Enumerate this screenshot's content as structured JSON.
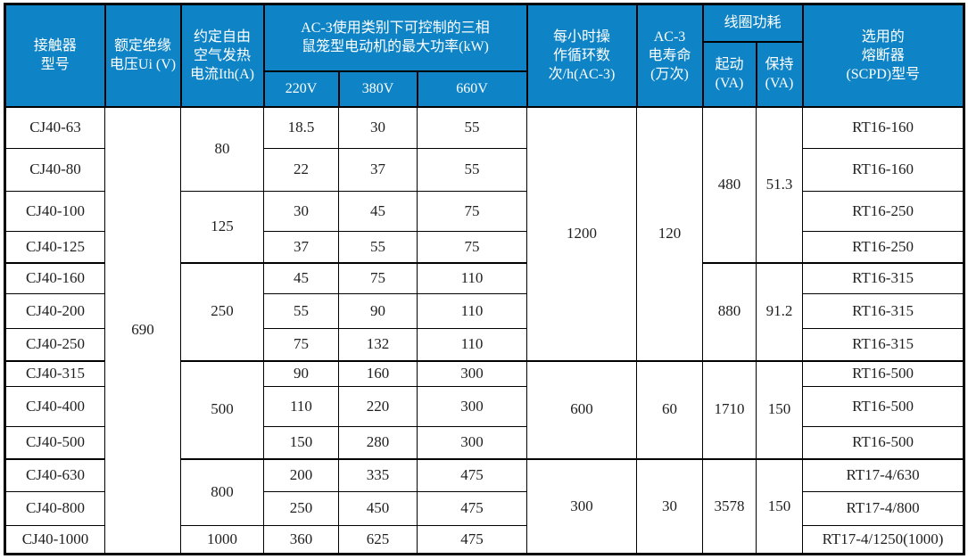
{
  "chart_data": {
    "type": "table",
    "header": {
      "model": "接触器\n型号",
      "ui": "额定绝缘\n电压Ui (V)",
      "ith": "约定自由\n空气发热\n电流Ith(A)",
      "power_group": "AC-3使用类别下可控制的三相\n鼠笼型电动机的最大功率(kW)",
      "v220": "220V",
      "v380": "380V",
      "v660": "660V",
      "cycles": "每小时操\n作循环数\n次/h(AC-3)",
      "life": "AC-3\n电寿命\n(万次)",
      "coil_group": "线圈功耗",
      "coil_start": "起动\n(VA)",
      "coil_hold": "保持\n(VA)",
      "fuse": "选用的\n熔断器\n(SCPD)型号"
    },
    "rows": [
      [
        {
          "c": "model",
          "v": "CJ40-63"
        },
        {
          "c": "ui",
          "v": "690",
          "rs": 13
        },
        {
          "c": "ith",
          "v": "80",
          "rs": 2
        },
        {
          "c": "p220",
          "v": "18.5"
        },
        {
          "c": "p380",
          "v": "30"
        },
        {
          "c": "p660",
          "v": "55"
        },
        {
          "c": "cycles",
          "v": "1200",
          "rs": 7
        },
        {
          "c": "life",
          "v": "120",
          "rs": 7
        },
        {
          "c": "coil-start",
          "v": "480",
          "rs": 4
        },
        {
          "c": "coil-hold",
          "v": "51.3",
          "rs": 4
        },
        {
          "c": "fuse",
          "v": "RT16-160"
        }
      ],
      [
        {
          "c": "model",
          "v": "CJ40-80"
        },
        {
          "c": "p220",
          "v": "22"
        },
        {
          "c": "p380",
          "v": "37"
        },
        {
          "c": "p660",
          "v": "55"
        },
        {
          "c": "fuse",
          "v": "RT16-160"
        }
      ],
      [
        {
          "c": "model",
          "v": "CJ40-100"
        },
        {
          "c": "ith",
          "v": "125",
          "rs": 2
        },
        {
          "c": "p220",
          "v": "30"
        },
        {
          "c": "p380",
          "v": "45"
        },
        {
          "c": "p660",
          "v": "75"
        },
        {
          "c": "fuse",
          "v": "RT16-250"
        }
      ],
      [
        {
          "c": "model",
          "v": "CJ40-125"
        },
        {
          "c": "p220",
          "v": "37"
        },
        {
          "c": "p380",
          "v": "55"
        },
        {
          "c": "p660",
          "v": "75"
        },
        {
          "c": "fuse",
          "v": "RT16-250"
        }
      ],
      [
        {
          "c": "model",
          "v": "CJ40-160"
        },
        {
          "c": "ith",
          "v": "250",
          "rs": 3
        },
        {
          "c": "p220",
          "v": "45"
        },
        {
          "c": "p380",
          "v": "75"
        },
        {
          "c": "p660",
          "v": "110"
        },
        {
          "c": "coil-start",
          "v": "880",
          "rs": 3
        },
        {
          "c": "coil-hold",
          "v": "91.2",
          "rs": 3
        },
        {
          "c": "fuse",
          "v": "RT16-315"
        }
      ],
      [
        {
          "c": "model",
          "v": "CJ40-200"
        },
        {
          "c": "p220",
          "v": "55"
        },
        {
          "c": "p380",
          "v": "90"
        },
        {
          "c": "p660",
          "v": "110"
        },
        {
          "c": "fuse",
          "v": "RT16-315"
        }
      ],
      [
        {
          "c": "model",
          "v": "CJ40-250"
        },
        {
          "c": "p220",
          "v": "75"
        },
        {
          "c": "p380",
          "v": "132"
        },
        {
          "c": "p660",
          "v": "110"
        },
        {
          "c": "fuse",
          "v": "RT16-315"
        }
      ],
      [
        {
          "c": "model",
          "v": "CJ40-315"
        },
        {
          "c": "ith",
          "v": "500",
          "rs": 3
        },
        {
          "c": "p220",
          "v": "90"
        },
        {
          "c": "p380",
          "v": "160"
        },
        {
          "c": "p660",
          "v": "300"
        },
        {
          "c": "cycles",
          "v": "600",
          "rs": 3
        },
        {
          "c": "life",
          "v": "60",
          "rs": 3
        },
        {
          "c": "coil-start",
          "v": "1710",
          "rs": 3
        },
        {
          "c": "coil-hold",
          "v": "150",
          "rs": 3
        },
        {
          "c": "fuse",
          "v": "RT16-500"
        }
      ],
      [
        {
          "c": "model",
          "v": "CJ40-400"
        },
        {
          "c": "p220",
          "v": "110"
        },
        {
          "c": "p380",
          "v": "220"
        },
        {
          "c": "p660",
          "v": "300"
        },
        {
          "c": "fuse",
          "v": "RT16-500"
        }
      ],
      [
        {
          "c": "model",
          "v": "CJ40-500"
        },
        {
          "c": "p220",
          "v": "150"
        },
        {
          "c": "p380",
          "v": "280"
        },
        {
          "c": "p660",
          "v": "300"
        },
        {
          "c": "fuse",
          "v": "RT16-500"
        }
      ],
      [
        {
          "c": "model",
          "v": "CJ40-630"
        },
        {
          "c": "ith",
          "v": "800",
          "rs": 2
        },
        {
          "c": "p220",
          "v": "200"
        },
        {
          "c": "p380",
          "v": "335"
        },
        {
          "c": "p660",
          "v": "475"
        },
        {
          "c": "cycles",
          "v": "300",
          "rs": 3
        },
        {
          "c": "life",
          "v": "30",
          "rs": 3
        },
        {
          "c": "coil-start",
          "v": "3578",
          "rs": 3
        },
        {
          "c": "coil-hold",
          "v": "150",
          "rs": 3
        },
        {
          "c": "fuse",
          "v": "RT17-4/630"
        }
      ],
      [
        {
          "c": "model",
          "v": "CJ40-800"
        },
        {
          "c": "p220",
          "v": "250"
        },
        {
          "c": "p380",
          "v": "450"
        },
        {
          "c": "p660",
          "v": "475"
        },
        {
          "c": "fuse",
          "v": "RT17-4/800"
        }
      ],
      [
        {
          "c": "model",
          "v": "CJ40-1000"
        },
        {
          "c": "ith",
          "v": "1000"
        },
        {
          "c": "p220",
          "v": "360"
        },
        {
          "c": "p380",
          "v": "625"
        },
        {
          "c": "p660",
          "v": "475"
        },
        {
          "c": "fuse",
          "v": "RT17-4/1250(1000)"
        }
      ]
    ]
  },
  "colors": {
    "header_bg": "#0e84c6",
    "header_text": "#ffffff",
    "border": "#000000",
    "body_text": "#1f1f1f",
    "page_bg": "#ffffff"
  }
}
